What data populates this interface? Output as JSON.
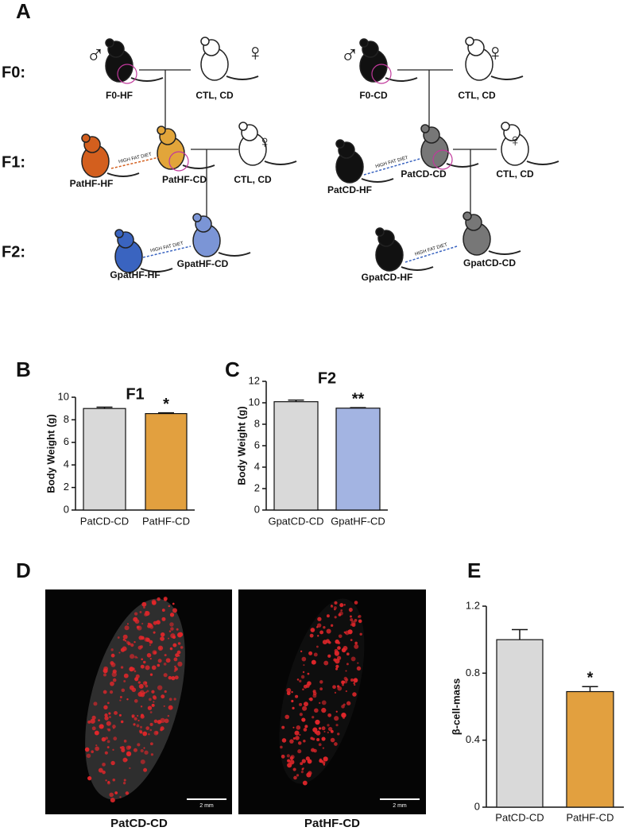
{
  "panel_labels": [
    "A",
    "B",
    "C",
    "D",
    "E"
  ],
  "diagram": {
    "generations": [
      "F0:",
      "F1:",
      "F2:"
    ],
    "male_symbol": "♂",
    "female_symbol": "♀",
    "diet_label": "HIGH FAT DIET",
    "nodes": [
      "F0-HF",
      "CTL, CD",
      "PatHF-CD",
      "PatHF-HF",
      "CTL, CD",
      "GpatHF-CD",
      "GpatHF-HF",
      "F0-CD",
      "CTL, CD",
      "PatCD-CD",
      "PatCD-HF",
      "CTL, CD",
      "GpatCD-CD",
      "GpatCD-HF"
    ]
  },
  "images": {
    "captions": [
      "PatCD-CD",
      "PatHF-CD"
    ],
    "scale_bar": "2 mm"
  },
  "chart_data": [
    {
      "type": "bar",
      "title": "F1",
      "ylabel": "Body Weight (g)",
      "categories": [
        "PatCD-CD",
        "PatHF-CD"
      ],
      "values": [
        9.0,
        8.55
      ],
      "errors": [
        0.12,
        0.07
      ],
      "significance": [
        null,
        "*"
      ],
      "colors": [
        "#d9d9d9",
        "#e2a03f"
      ],
      "ylim": [
        0,
        10
      ],
      "yticks": [
        0,
        2,
        4,
        6,
        8,
        10
      ]
    },
    {
      "type": "bar",
      "title": "F2",
      "ylabel": "Body Weight (g)",
      "categories": [
        "GpatCD-CD",
        "GpatHF-CD"
      ],
      "values": [
        10.1,
        9.5
      ],
      "errors": [
        0.15,
        0.05
      ],
      "significance": [
        null,
        "**"
      ],
      "colors": [
        "#d9d9d9",
        "#a3b4e2"
      ],
      "ylim": [
        0,
        12
      ],
      "yticks": [
        0,
        2,
        4,
        6,
        8,
        10,
        12
      ]
    },
    {
      "type": "bar",
      "ylabel": "β-cell-mass",
      "categories": [
        "PatCD-CD",
        "PatHF-CD"
      ],
      "values": [
        1.0,
        0.69
      ],
      "errors": [
        0.06,
        0.03
      ],
      "significance": [
        null,
        "*"
      ],
      "colors": [
        "#d9d9d9",
        "#e2a03f"
      ],
      "ylim": [
        0,
        1.2
      ],
      "yticks": [
        0,
        0.4,
        0.8,
        1.2
      ]
    }
  ]
}
